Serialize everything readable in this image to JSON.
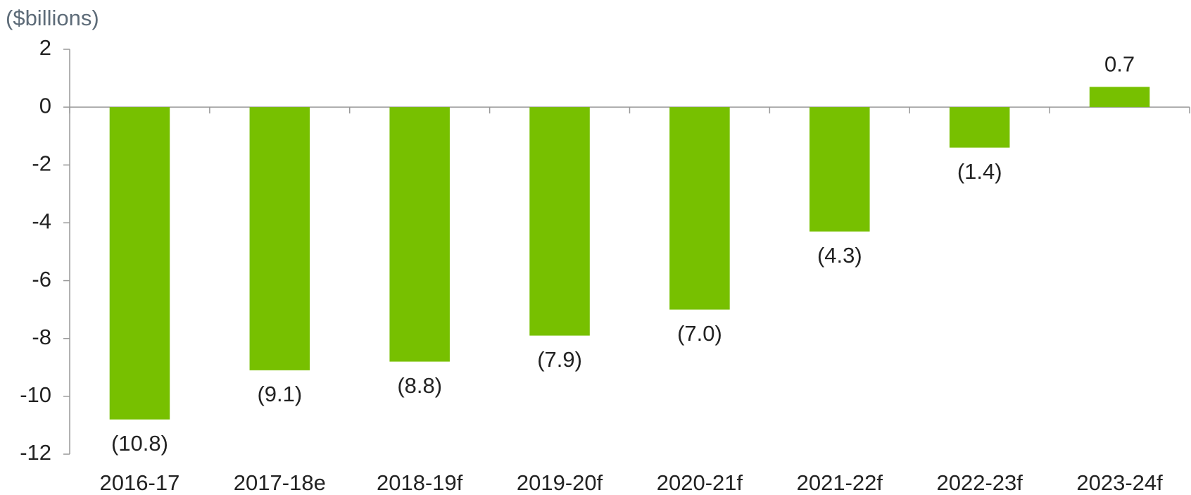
{
  "chart_data": {
    "type": "bar",
    "y_axis_label": "($billions)",
    "categories": [
      "2016-17",
      "2017-18e",
      "2018-19f",
      "2019-20f",
      "2020-21f",
      "2021-22f",
      "2022-23f",
      "2023-24f"
    ],
    "values": [
      -10.8,
      -9.1,
      -8.8,
      -7.9,
      -7.0,
      -4.3,
      -1.4,
      0.7
    ],
    "value_labels": [
      "(10.8)",
      "(9.1)",
      "(8.8)",
      "(7.9)",
      "(7.0)",
      "(4.3)",
      "(1.4)",
      "0.7"
    ],
    "color": "#77c000",
    "ylim": [
      -12,
      2
    ],
    "yticks": [
      -12,
      -10,
      -8,
      -6,
      -4,
      -2,
      0,
      2
    ],
    "grid": false
  }
}
